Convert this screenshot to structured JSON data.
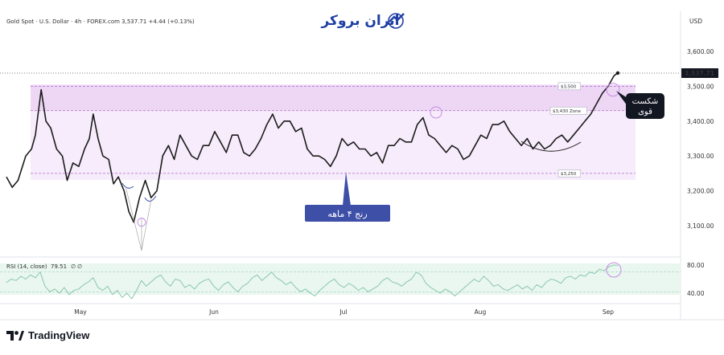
{
  "header": {
    "symbol_line": "Gold Spot · U.S. Dollar · 4h · FOREX.com  3,537.71  +4.44 (+0.13%)",
    "brand": "ایران بروکر",
    "currency": "USD"
  },
  "chart_data": {
    "type": "line",
    "title": "",
    "price_axis": {
      "ticks": [
        "3,600.00",
        "3,500.00",
        "3,400.00",
        "3,300.00",
        "3,200.00",
        "3,100.00"
      ],
      "tick_values": [
        3600,
        3500,
        3400,
        3300,
        3200,
        3100
      ],
      "range": [
        3040,
        3640
      ]
    },
    "current_price_label": "3,537.71",
    "current_price": 3537.71,
    "months": [
      "May",
      "Jun",
      "Jul",
      "Aug",
      "Sep"
    ],
    "levels": [
      {
        "label": "$3,500",
        "value": 3500
      },
      {
        "label": "$3,430 Zone",
        "value": 3430
      },
      {
        "label": "$3,250",
        "value": 3250
      }
    ],
    "range_label": "رنج ۴ ماهه",
    "breakout_label": [
      "شکست",
      "قوی"
    ],
    "price_series": [
      [
        0,
        3240
      ],
      [
        0.6,
        3210
      ],
      [
        1.2,
        3230
      ],
      [
        2,
        3300
      ],
      [
        2.6,
        3320
      ],
      [
        3,
        3360
      ],
      [
        3.6,
        3490
      ],
      [
        4.1,
        3400
      ],
      [
        4.6,
        3380
      ],
      [
        5.2,
        3320
      ],
      [
        5.8,
        3300
      ],
      [
        6.3,
        3230
      ],
      [
        6.9,
        3280
      ],
      [
        7.5,
        3270
      ],
      [
        8.1,
        3320
      ],
      [
        8.6,
        3350
      ],
      [
        9,
        3420
      ],
      [
        9.5,
        3350
      ],
      [
        10,
        3300
      ],
      [
        10.6,
        3290
      ],
      [
        11.1,
        3220
      ],
      [
        11.6,
        3240
      ],
      [
        12.2,
        3200
      ],
      [
        12.7,
        3140
      ],
      [
        13.2,
        3110
      ],
      [
        13.8,
        3180
      ],
      [
        14.4,
        3230
      ],
      [
        15,
        3180
      ],
      [
        15.6,
        3200
      ],
      [
        16.2,
        3300
      ],
      [
        16.8,
        3330
      ],
      [
        17.4,
        3290
      ],
      [
        18,
        3360
      ],
      [
        18.6,
        3330
      ],
      [
        19.2,
        3300
      ],
      [
        19.8,
        3290
      ],
      [
        20.4,
        3330
      ],
      [
        21,
        3330
      ],
      [
        21.6,
        3370
      ],
      [
        22.2,
        3340
      ],
      [
        22.8,
        3310
      ],
      [
        23.4,
        3360
      ],
      [
        24,
        3360
      ],
      [
        24.6,
        3310
      ],
      [
        25.2,
        3300
      ],
      [
        25.8,
        3320
      ],
      [
        26.4,
        3350
      ],
      [
        27,
        3390
      ],
      [
        27.6,
        3420
      ],
      [
        28.2,
        3380
      ],
      [
        28.8,
        3400
      ],
      [
        29.4,
        3400
      ],
      [
        30,
        3370
      ],
      [
        30.6,
        3380
      ],
      [
        31.2,
        3320
      ],
      [
        31.8,
        3300
      ],
      [
        32.4,
        3300
      ],
      [
        33,
        3290
      ],
      [
        33.6,
        3270
      ],
      [
        34.2,
        3300
      ],
      [
        34.8,
        3350
      ],
      [
        35.4,
        3330
      ],
      [
        36,
        3340
      ],
      [
        36.6,
        3320
      ],
      [
        37.2,
        3320
      ],
      [
        37.8,
        3300
      ],
      [
        38.4,
        3310
      ],
      [
        39,
        3280
      ],
      [
        39.6,
        3330
      ],
      [
        40.2,
        3330
      ],
      [
        40.8,
        3350
      ],
      [
        41.4,
        3340
      ],
      [
        42,
        3340
      ],
      [
        42.6,
        3390
      ],
      [
        43.2,
        3410
      ],
      [
        43.8,
        3360
      ],
      [
        44.4,
        3350
      ],
      [
        45,
        3330
      ],
      [
        45.6,
        3310
      ],
      [
        46.2,
        3330
      ],
      [
        46.8,
        3320
      ],
      [
        47.4,
        3290
      ],
      [
        48,
        3300
      ],
      [
        48.6,
        3330
      ],
      [
        49.2,
        3360
      ],
      [
        49.8,
        3350
      ],
      [
        50.4,
        3390
      ],
      [
        51,
        3390
      ],
      [
        51.6,
        3400
      ],
      [
        52.2,
        3370
      ],
      [
        52.8,
        3350
      ],
      [
        53.4,
        3330
      ],
      [
        54,
        3350
      ],
      [
        54.6,
        3320
      ],
      [
        55.2,
        3340
      ],
      [
        55.8,
        3320
      ],
      [
        56.4,
        3330
      ],
      [
        57,
        3350
      ],
      [
        57.6,
        3360
      ],
      [
        58.2,
        3340
      ],
      [
        58.8,
        3360
      ],
      [
        59.4,
        3380
      ],
      [
        60,
        3400
      ],
      [
        60.6,
        3420
      ],
      [
        61.2,
        3450
      ],
      [
        61.8,
        3480
      ],
      [
        62.4,
        3500
      ],
      [
        63,
        3530
      ],
      [
        63.4,
        3538
      ]
    ],
    "rsi": {
      "label": "RSI (14, close)",
      "value_label": "79.51",
      "extra": [
        "∅",
        "∅"
      ],
      "ticks": [
        "80.00",
        "40.00"
      ],
      "tick_values": [
        80,
        40
      ],
      "range": [
        22,
        92
      ],
      "series": [
        [
          0,
          55
        ],
        [
          0.5,
          60
        ],
        [
          1,
          58
        ],
        [
          1.5,
          64
        ],
        [
          2,
          60
        ],
        [
          2.5,
          66
        ],
        [
          3,
          62
        ],
        [
          3.5,
          70
        ],
        [
          4,
          50
        ],
        [
          4.5,
          42
        ],
        [
          5,
          46
        ],
        [
          5.5,
          40
        ],
        [
          6,
          48
        ],
        [
          6.5,
          38
        ],
        [
          7,
          44
        ],
        [
          7.5,
          46
        ],
        [
          8,
          52
        ],
        [
          8.5,
          56
        ],
        [
          9,
          62
        ],
        [
          9.5,
          48
        ],
        [
          10,
          44
        ],
        [
          10.5,
          50
        ],
        [
          11,
          38
        ],
        [
          11.5,
          44
        ],
        [
          12,
          34
        ],
        [
          12.5,
          40
        ],
        [
          13,
          32
        ],
        [
          13.5,
          44
        ],
        [
          14,
          58
        ],
        [
          14.5,
          50
        ],
        [
          15,
          56
        ],
        [
          15.5,
          62
        ],
        [
          16,
          66
        ],
        [
          16.5,
          56
        ],
        [
          17,
          50
        ],
        [
          17.5,
          60
        ],
        [
          18,
          58
        ],
        [
          18.5,
          48
        ],
        [
          19,
          52
        ],
        [
          19.5,
          46
        ],
        [
          20,
          54
        ],
        [
          20.5,
          58
        ],
        [
          21,
          60
        ],
        [
          21.5,
          50
        ],
        [
          22,
          44
        ],
        [
          22.5,
          52
        ],
        [
          23,
          56
        ],
        [
          23.5,
          48
        ],
        [
          24,
          42
        ],
        [
          24.5,
          50
        ],
        [
          25,
          54
        ],
        [
          25.5,
          62
        ],
        [
          26,
          66
        ],
        [
          26.5,
          58
        ],
        [
          27,
          64
        ],
        [
          27.5,
          70
        ],
        [
          28,
          62
        ],
        [
          28.5,
          58
        ],
        [
          29,
          52
        ],
        [
          29.5,
          56
        ],
        [
          30,
          48
        ],
        [
          30.5,
          42
        ],
        [
          31,
          46
        ],
        [
          31.5,
          40
        ],
        [
          32,
          36
        ],
        [
          32.5,
          44
        ],
        [
          33,
          50
        ],
        [
          33.5,
          56
        ],
        [
          34,
          60
        ],
        [
          34.5,
          52
        ],
        [
          35,
          48
        ],
        [
          35.5,
          54
        ],
        [
          36,
          50
        ],
        [
          36.5,
          44
        ],
        [
          37,
          48
        ],
        [
          37.5,
          42
        ],
        [
          38,
          46
        ],
        [
          38.5,
          50
        ],
        [
          39,
          58
        ],
        [
          39.5,
          62
        ],
        [
          40,
          56
        ],
        [
          40.5,
          54
        ],
        [
          41,
          50
        ],
        [
          41.5,
          56
        ],
        [
          42,
          60
        ],
        [
          42.5,
          70
        ],
        [
          43,
          66
        ],
        [
          43.5,
          54
        ],
        [
          44,
          48
        ],
        [
          44.5,
          44
        ],
        [
          45,
          40
        ],
        [
          45.5,
          46
        ],
        [
          46,
          42
        ],
        [
          46.5,
          36
        ],
        [
          47,
          42
        ],
        [
          47.5,
          48
        ],
        [
          48,
          54
        ],
        [
          48.5,
          60
        ],
        [
          49,
          56
        ],
        [
          49.5,
          64
        ],
        [
          50,
          58
        ],
        [
          50.5,
          50
        ],
        [
          51,
          52
        ],
        [
          51.5,
          46
        ],
        [
          52,
          44
        ],
        [
          52.5,
          48
        ],
        [
          53,
          52
        ],
        [
          53.5,
          46
        ],
        [
          54,
          50
        ],
        [
          54.5,
          44
        ],
        [
          55,
          52
        ],
        [
          55.5,
          48
        ],
        [
          56,
          56
        ],
        [
          56.5,
          60
        ],
        [
          57,
          58
        ],
        [
          57.5,
          54
        ],
        [
          58,
          62
        ],
        [
          58.5,
          64
        ],
        [
          59,
          60
        ],
        [
          59.5,
          66
        ],
        [
          60,
          64
        ],
        [
          60.5,
          70
        ],
        [
          61,
          68
        ],
        [
          61.5,
          74
        ],
        [
          62,
          72
        ],
        [
          62.5,
          78
        ],
        [
          63,
          80
        ],
        [
          63.4,
          79.5
        ]
      ]
    }
  }
}
